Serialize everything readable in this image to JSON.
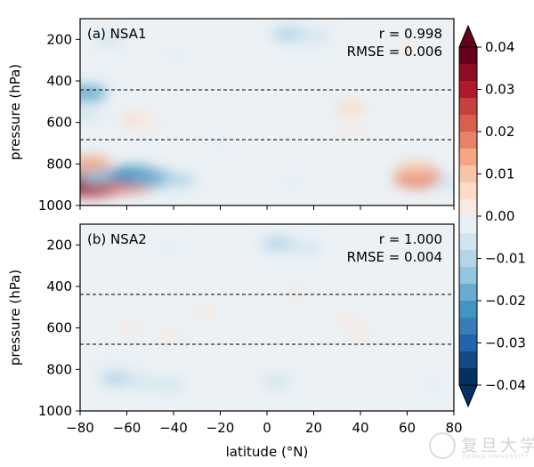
{
  "chart_data": {
    "type": "heatmap",
    "shared_xlabel": "latitude (°N)",
    "shared_ylabel": "pressure (hPa)",
    "xlim": [
      -80,
      80
    ],
    "xticks": [
      -80,
      -60,
      -40,
      -20,
      0,
      20,
      40,
      60,
      80
    ],
    "x_tick_labels": [
      "−80",
      "−60",
      "−40",
      "−20",
      "0",
      "20",
      "40",
      "60",
      "80"
    ],
    "ylim": [
      1000,
      100
    ],
    "yticks": [
      200,
      400,
      600,
      800,
      1000
    ],
    "y_tick_labels": [
      "200",
      "400",
      "600",
      "800",
      "1000"
    ],
    "reference_lines_hPa": [
      440,
      680
    ],
    "panels": [
      {
        "id": "a",
        "label": "(a) NSA1",
        "r_text": "r = 0.998",
        "rmse_text": "RMSE = 0.006",
        "anomalies": [
          {
            "lat": -76,
            "p": 895,
            "value": 0.035
          },
          {
            "lat": -68,
            "p": 890,
            "value": 0.03
          },
          {
            "lat": -58,
            "p": 895,
            "value": 0.018
          },
          {
            "lat": -76,
            "p": 800,
            "value": 0.014
          },
          {
            "lat": -72,
            "p": 860,
            "value": -0.012
          },
          {
            "lat": -57,
            "p": 855,
            "value": -0.022
          },
          {
            "lat": -48,
            "p": 870,
            "value": -0.016
          },
          {
            "lat": -38,
            "p": 880,
            "value": -0.008
          },
          {
            "lat": -78,
            "p": 460,
            "value": -0.016
          },
          {
            "lat": -78,
            "p": 560,
            "value": -0.006
          },
          {
            "lat": -68,
            "p": 200,
            "value": -0.005
          },
          {
            "lat": -56,
            "p": 590,
            "value": 0.006
          },
          {
            "lat": -50,
            "p": 605,
            "value": 0.004
          },
          {
            "lat": 10,
            "p": 175,
            "value": -0.01
          },
          {
            "lat": 20,
            "p": 185,
            "value": -0.006
          },
          {
            "lat": -40,
            "p": 270,
            "value": -0.004
          },
          {
            "lat": 36,
            "p": 530,
            "value": 0.006
          },
          {
            "lat": 36,
            "p": 640,
            "value": 0.004
          },
          {
            "lat": 65,
            "p": 870,
            "value": 0.02
          },
          {
            "lat": 64,
            "p": 825,
            "value": 0.012
          },
          {
            "lat": 78,
            "p": 895,
            "value": -0.006
          },
          {
            "lat": 60,
            "p": 250,
            "value": 0.003
          },
          {
            "lat": 10,
            "p": 880,
            "value": -0.003
          },
          {
            "lat": -20,
            "p": 700,
            "value": -0.003
          }
        ]
      },
      {
        "id": "b",
        "label": "(b) NSA2",
        "r_text": "r = 1.000",
        "rmse_text": "RMSE = 0.004",
        "anomalies": [
          {
            "lat": 5,
            "p": 195,
            "value": -0.008
          },
          {
            "lat": 16,
            "p": 215,
            "value": -0.006
          },
          {
            "lat": -42,
            "p": 210,
            "value": -0.003
          },
          {
            "lat": -64,
            "p": 845,
            "value": -0.008
          },
          {
            "lat": -54,
            "p": 860,
            "value": -0.006
          },
          {
            "lat": -42,
            "p": 875,
            "value": -0.005
          },
          {
            "lat": 4,
            "p": 860,
            "value": -0.005
          },
          {
            "lat": -70,
            "p": 775,
            "value": -0.004
          },
          {
            "lat": -58,
            "p": 595,
            "value": 0.004
          },
          {
            "lat": -40,
            "p": 640,
            "value": 0.003
          },
          {
            "lat": 35,
            "p": 560,
            "value": 0.004
          },
          {
            "lat": 40,
            "p": 640,
            "value": 0.003
          },
          {
            "lat": 12,
            "p": 430,
            "value": 0.002
          },
          {
            "lat": 70,
            "p": 880,
            "value": -0.003
          },
          {
            "lat": -26,
            "p": 520,
            "value": 0.002
          }
        ]
      }
    ],
    "colorbar": {
      "vmin": -0.04,
      "vmax": 0.04,
      "ticks": [
        0.04,
        0.03,
        0.02,
        0.01,
        0.0,
        -0.01,
        -0.02,
        -0.03,
        -0.04
      ],
      "tick_labels": [
        "0.04",
        "0.03",
        "0.02",
        "0.01",
        "0.00",
        "−0.01",
        "−0.02",
        "−0.03",
        "−0.04"
      ],
      "colors": [
        "#67001f",
        "#8f0c25",
        "#b2182b",
        "#c6413e",
        "#d6604d",
        "#e58267",
        "#f4a582",
        "#f7c4a9",
        "#fddbc7",
        "#f7eae3",
        "#e8eff5",
        "#d1e5f0",
        "#b3d5e8",
        "#92c5de",
        "#6aacd0",
        "#4393c3",
        "#3a7cb6",
        "#2166ac",
        "#134a84",
        "#053061"
      ],
      "extend": "both"
    },
    "background_color": "#ebf1f5"
  },
  "watermark": {
    "name": "复旦大学",
    "sub": "FUDAN UNIVERSITY"
  }
}
